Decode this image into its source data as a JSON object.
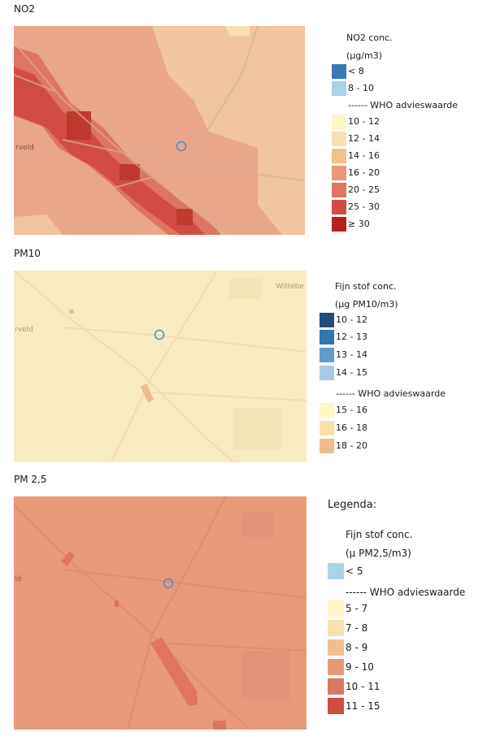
{
  "no2": {
    "title": "NO2",
    "legend_title": "NO2 conc.",
    "legend_unit": "(µg/m3)",
    "who_line": "------ WHO advieswaarde",
    "items_below": [
      {
        "label": "< 8",
        "color": "#3a78b5"
      },
      {
        "label": "8 - 10",
        "color": "#a8d4e6"
      }
    ],
    "items_above": [
      {
        "label": "10 - 12",
        "color": "#fcf7c4"
      },
      {
        "label": "12 - 14",
        "color": "#f8e0b0"
      },
      {
        "label": "14 - 16",
        "color": "#f0c08e"
      },
      {
        "label": "16 - 20",
        "color": "#e8987a"
      },
      {
        "label": "20 - 25",
        "color": "#df7460"
      },
      {
        "label": "25 - 30",
        "color": "#d24c44"
      },
      {
        "label": "≥ 30",
        "color": "#b82020"
      }
    ]
  },
  "pm10": {
    "title": "PM10",
    "legend_title": "Fijn stof conc.",
    "legend_unit": "(µg PM10/m3)",
    "who_line": "------ WHO advieswaarde",
    "items_below": [
      {
        "label": "10 - 12",
        "color": "#1f4e79"
      },
      {
        "label": "12 - 13",
        "color": "#2f76b2"
      },
      {
        "label": "13 - 14",
        "color": "#5e9ccd"
      },
      {
        "label": "14 - 15",
        "color": "#a9c9e2"
      }
    ],
    "items_above": [
      {
        "label": "15 - 16",
        "color": "#fdf8c6"
      },
      {
        "label": "16 - 18",
        "color": "#f8e1aa"
      },
      {
        "label": "18 - 20",
        "color": "#f0bc8c"
      }
    ]
  },
  "pm25": {
    "title": "PM 2,5",
    "legend_header": "Legenda:",
    "legend_title": "Fijn stof conc.",
    "legend_unit": "(µ PM2,5/m3)",
    "who_line": "------ WHO advieswaarde",
    "items_below": [
      {
        "label": "< 5",
        "color": "#a8d4e6"
      }
    ],
    "items_above": [
      {
        "label": "5 - 7",
        "color": "#fcf7c4"
      },
      {
        "label": "7 - 8",
        "color": "#f8e0b0"
      },
      {
        "label": "8 - 9",
        "color": "#f0c08e"
      },
      {
        "label": "9 - 10",
        "color": "#e8987a"
      },
      {
        "label": "10 - 11",
        "color": "#df7460"
      },
      {
        "label": "11 - 15",
        "color": "#d24c44"
      }
    ]
  },
  "basemap_labels": {
    "no2_place": "rveld",
    "pm10_place": "rveld",
    "pm10_place2": "Wittebe",
    "pm25_place": "ld"
  }
}
